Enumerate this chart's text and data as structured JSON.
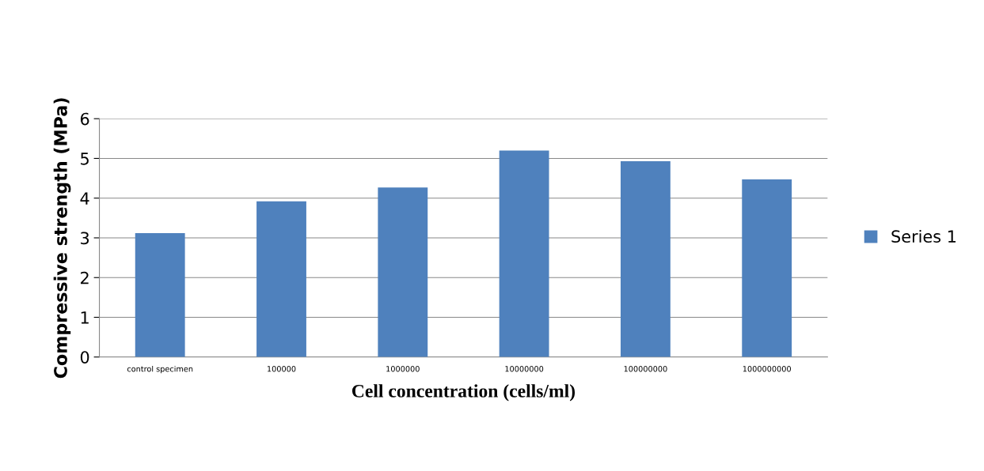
{
  "chart_data": {
    "type": "bar",
    "xlabel": "Cell concentration (cells/ml)",
    "ylabel": "Compressive strength (MPa)",
    "categories": [
      "control specimen",
      "100000",
      "1000000",
      "10000000",
      "100000000",
      "1000000000"
    ],
    "series": [
      {
        "name": "Series 1",
        "color": "#4f81bd",
        "values": [
          3.12,
          3.92,
          4.27,
          5.2,
          4.93,
          4.47
        ]
      }
    ],
    "ylim": [
      0,
      6
    ],
    "yticks": [
      0,
      1,
      2,
      3,
      4,
      5,
      6
    ],
    "grid": "y",
    "legend": "right"
  }
}
